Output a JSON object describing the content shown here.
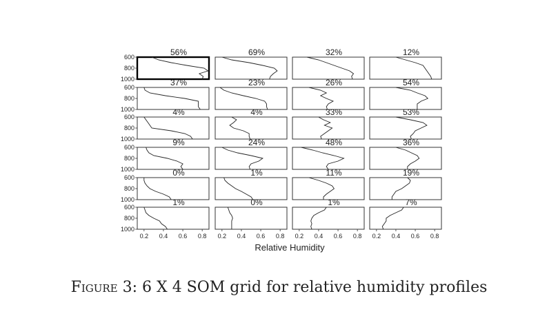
{
  "chart_data": {
    "type": "line",
    "grid": {
      "rows": 6,
      "cols": 4
    },
    "xlabel": "Relative Humidity",
    "xlim": [
      0.13,
      0.87
    ],
    "ylim": [
      600,
      1000
    ],
    "y_inverted": true,
    "xticks": [
      "0.2",
      "0.4",
      "0.6",
      "0.8"
    ],
    "yticks": [
      "600",
      "800",
      "1000"
    ],
    "highlight": [
      0,
      0
    ],
    "levels": [
      600,
      650,
      700,
      750,
      800,
      850,
      900,
      950,
      1000
    ],
    "panels": [
      {
        "pct": "56%",
        "rh": [
          0.28,
          0.35,
          0.48,
          0.64,
          0.82,
          0.86,
          0.77,
          0.81,
          0.8
        ]
      },
      {
        "pct": "69%",
        "rh": [
          0.2,
          0.3,
          0.48,
          0.62,
          0.74,
          0.77,
          0.73,
          0.7,
          0.69
        ]
      },
      {
        "pct": "32%",
        "rh": [
          0.28,
          0.4,
          0.48,
          0.56,
          0.64,
          0.72,
          0.76,
          0.74,
          0.75
        ]
      },
      {
        "pct": "12%",
        "rh": [
          0.4,
          0.5,
          0.6,
          0.68,
          0.7,
          0.72,
          0.74,
          0.76,
          0.77
        ]
      },
      {
        "pct": "37%",
        "rh": [
          0.2,
          0.21,
          0.26,
          0.42,
          0.62,
          0.76,
          0.76,
          0.76,
          0.78
        ]
      },
      {
        "pct": "23%",
        "rh": [
          0.18,
          0.22,
          0.3,
          0.42,
          0.55,
          0.64,
          0.66,
          0.66,
          0.67
        ]
      },
      {
        "pct": "26%",
        "rh": [
          0.3,
          0.42,
          0.48,
          0.42,
          0.48,
          0.55,
          0.5,
          0.48,
          0.49
        ]
      },
      {
        "pct": "54%",
        "rh": [
          0.4,
          0.55,
          0.62,
          0.7,
          0.73,
          0.66,
          0.62,
          0.62,
          0.62
        ]
      },
      {
        "pct": "4%",
        "rh": [
          0.2,
          0.22,
          0.24,
          0.26,
          0.28,
          0.48,
          0.62,
          0.68,
          0.7
        ]
      },
      {
        "pct": "4%",
        "rh": [
          0.3,
          0.35,
          0.32,
          0.28,
          0.32,
          0.42,
          0.48,
          0.48,
          0.49
        ]
      },
      {
        "pct": "33%",
        "rh": [
          0.4,
          0.45,
          0.52,
          0.46,
          0.54,
          0.5,
          0.46,
          0.42,
          0.43
        ]
      },
      {
        "pct": "53%",
        "rh": [
          0.4,
          0.55,
          0.68,
          0.72,
          0.66,
          0.6,
          0.58,
          0.55,
          0.56
        ]
      },
      {
        "pct": "9%",
        "rh": [
          0.22,
          0.23,
          0.25,
          0.3,
          0.44,
          0.54,
          0.6,
          0.58,
          0.6
        ]
      },
      {
        "pct": "24%",
        "rh": [
          0.2,
          0.26,
          0.36,
          0.5,
          0.62,
          0.58,
          0.5,
          0.48,
          0.49
        ]
      },
      {
        "pct": "48%",
        "rh": [
          0.22,
          0.34,
          0.44,
          0.56,
          0.66,
          0.6,
          0.5,
          0.48,
          0.5
        ]
      },
      {
        "pct": "36%",
        "rh": [
          0.4,
          0.5,
          0.56,
          0.62,
          0.64,
          0.6,
          0.55,
          0.52,
          0.52
        ]
      },
      {
        "pct": "0%",
        "rh": [
          0.2,
          0.2,
          0.21,
          0.23,
          0.26,
          0.32,
          0.4,
          0.46,
          0.48
        ]
      },
      {
        "pct": "1%",
        "rh": [
          0.22,
          0.23,
          0.26,
          0.3,
          0.34,
          0.4,
          0.45,
          0.5,
          0.52
        ]
      },
      {
        "pct": "11%",
        "rh": [
          0.3,
          0.4,
          0.48,
          0.54,
          0.56,
          0.52,
          0.48,
          0.45,
          0.45
        ]
      },
      {
        "pct": "19%",
        "rh": [
          0.52,
          0.55,
          0.54,
          0.5,
          0.46,
          0.4,
          0.38,
          0.36,
          0.36
        ]
      },
      {
        "pct": "1%",
        "rh": [
          0.2,
          0.21,
          0.22,
          0.25,
          0.3,
          0.36,
          0.38,
          0.42,
          0.44
        ]
      },
      {
        "pct": "0%",
        "rh": [
          0.26,
          0.27,
          0.28,
          0.3,
          0.31,
          0.3,
          0.3,
          0.3,
          0.3
        ]
      },
      {
        "pct": "1%",
        "rh": [
          0.48,
          0.46,
          0.4,
          0.35,
          0.33,
          0.32,
          0.33,
          0.32,
          0.33
        ]
      },
      {
        "pct": "7%",
        "rh": [
          0.48,
          0.46,
          0.4,
          0.34,
          0.3,
          0.3,
          0.28,
          0.26,
          0.27
        ]
      }
    ]
  },
  "caption": {
    "label": "Figure 3",
    "text": ": 6 X 4 SOM grid for relative humidity profiles"
  }
}
